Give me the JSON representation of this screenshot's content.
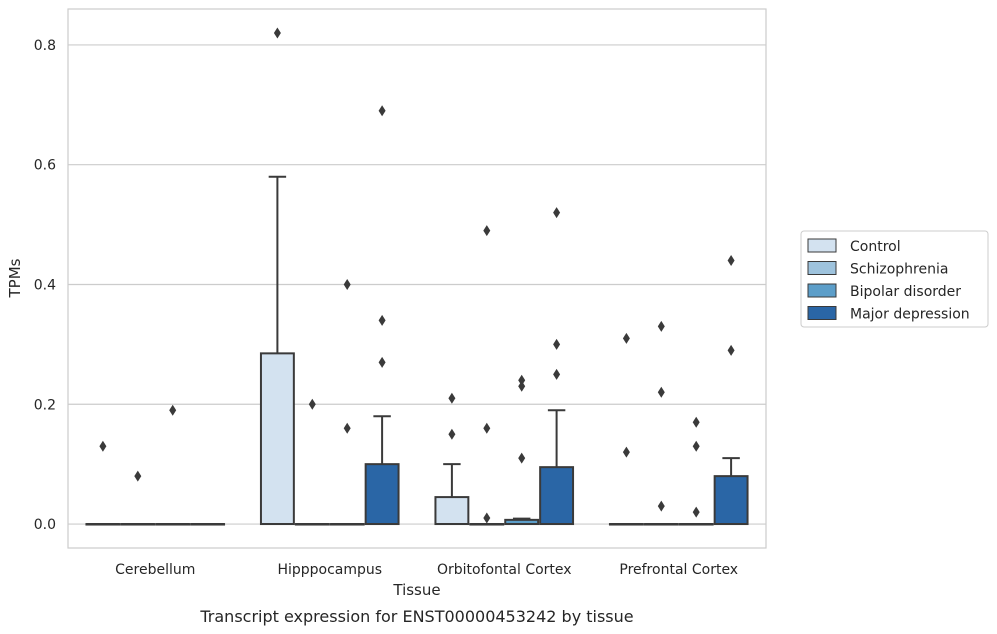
{
  "chart_data": {
    "type": "boxplot",
    "xlabel": "Tissue",
    "ylabel": "TPMs",
    "caption": "Transcript expression for ENST00000453242 by tissue",
    "ylim": [
      -0.04,
      0.86
    ],
    "yticks": [
      0.0,
      0.2,
      0.4,
      0.6,
      0.8
    ],
    "ytick_labels": [
      "0.0",
      "0.2",
      "0.4",
      "0.6",
      "0.8"
    ],
    "grid": "horizontal",
    "legend_position": "right",
    "categories": [
      "Cerebellum",
      "Hipppocampus",
      "Orbitofontal Cortex",
      "Prefrontal Cortex"
    ],
    "series": [
      {
        "name": "Control",
        "color": "#d3e2f0",
        "boxes": [
          {
            "q1": 0,
            "median": 0,
            "q3": 0,
            "whislo": 0,
            "whishi": 0,
            "fliers": [
              0.13
            ]
          },
          {
            "q1": 0,
            "median": 0,
            "q3": 0.285,
            "whislo": 0,
            "whishi": 0.58,
            "fliers": [
              0.82
            ]
          },
          {
            "q1": 0,
            "median": 0,
            "q3": 0.045,
            "whislo": 0,
            "whishi": 0.1,
            "fliers": [
              0.21,
              0.15
            ]
          },
          {
            "q1": 0,
            "median": 0,
            "q3": 0,
            "whislo": 0,
            "whishi": 0,
            "fliers": [
              0.31,
              0.12
            ]
          }
        ]
      },
      {
        "name": "Schizophrenia",
        "color": "#9ec3dd",
        "boxes": [
          {
            "q1": 0,
            "median": 0,
            "q3": 0,
            "whislo": 0,
            "whishi": 0,
            "fliers": [
              0.08
            ]
          },
          {
            "q1": 0,
            "median": 0,
            "q3": 0,
            "whislo": 0,
            "whishi": 0,
            "fliers": [
              0.2
            ]
          },
          {
            "q1": 0,
            "median": 0,
            "q3": 0,
            "whislo": 0,
            "whishi": 0,
            "fliers": [
              0.49,
              0.16,
              0.01
            ]
          },
          {
            "q1": 0,
            "median": 0,
            "q3": 0,
            "whislo": 0,
            "whishi": 0,
            "fliers": [
              0.33,
              0.22,
              0.03
            ]
          }
        ]
      },
      {
        "name": "Bipolar disorder",
        "color": "#5c9ec9",
        "boxes": [
          {
            "q1": 0,
            "median": 0,
            "q3": 0,
            "whislo": 0,
            "whishi": 0,
            "fliers": [
              0.19
            ]
          },
          {
            "q1": 0,
            "median": 0,
            "q3": 0,
            "whislo": 0,
            "whishi": 0,
            "fliers": [
              0.4,
              0.16
            ]
          },
          {
            "q1": 0,
            "median": 0,
            "q3": 0.007,
            "whislo": 0,
            "whishi": 0.009,
            "fliers": [
              0.24,
              0.23,
              0.11
            ]
          },
          {
            "q1": 0,
            "median": 0,
            "q3": 0,
            "whislo": 0,
            "whishi": 0,
            "fliers": [
              0.17,
              0.13,
              0.02
            ]
          }
        ]
      },
      {
        "name": "Major depression",
        "color": "#2a66a6",
        "boxes": [
          {
            "q1": 0,
            "median": 0,
            "q3": 0,
            "whislo": 0,
            "whishi": 0,
            "fliers": []
          },
          {
            "q1": 0,
            "median": 0,
            "q3": 0.1,
            "whislo": 0,
            "whishi": 0.18,
            "fliers": [
              0.69,
              0.34,
              0.27
            ]
          },
          {
            "q1": 0,
            "median": 0,
            "q3": 0.095,
            "whislo": 0,
            "whishi": 0.19,
            "fliers": [
              0.52,
              0.3,
              0.25
            ]
          },
          {
            "q1": 0,
            "median": 0,
            "q3": 0.08,
            "whislo": 0,
            "whishi": 0.11,
            "fliers": [
              0.44,
              0.29
            ]
          }
        ]
      }
    ]
  }
}
